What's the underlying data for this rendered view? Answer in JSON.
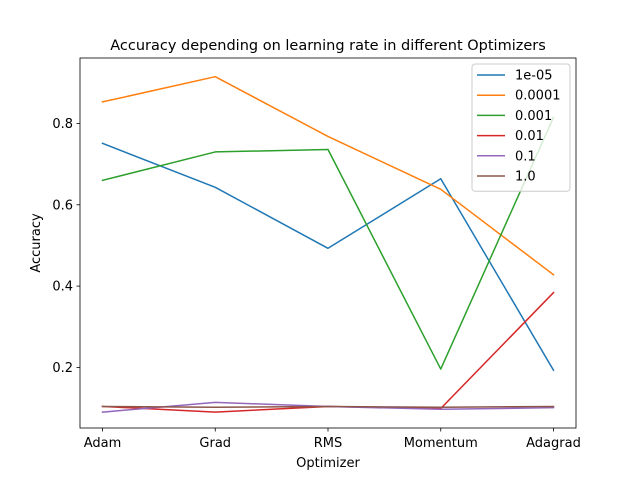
{
  "chart_data": {
    "type": "line",
    "title": "Accuracy depending on learning rate in different Optimizers",
    "xlabel": "Optimizer",
    "ylabel": "Accuracy",
    "categories": [
      "Adam",
      "Grad",
      "RMS",
      "Momentum",
      "Adagrad"
    ],
    "y_ticks": [
      0.2,
      0.4,
      0.6,
      0.8
    ],
    "y_tick_labels": [
      "0.2",
      "0.4",
      "0.6",
      "0.8"
    ],
    "ylim": [
      0.051,
      0.961
    ],
    "grid": false,
    "legend_position": "top-right",
    "series": [
      {
        "name": "1e-05",
        "color": "#1f77b4",
        "values": [
          0.751,
          0.643,
          0.493,
          0.664,
          0.193
        ]
      },
      {
        "name": "0.0001",
        "color": "#ff7f0e",
        "values": [
          0.853,
          0.915,
          0.768,
          0.638,
          0.428
        ]
      },
      {
        "name": "0.001",
        "color": "#2ca02c",
        "values": [
          0.66,
          0.73,
          0.736,
          0.196,
          0.815
        ]
      },
      {
        "name": "0.01",
        "color": "#d62728",
        "values": [
          0.104,
          0.09,
          0.104,
          0.099,
          0.384
        ]
      },
      {
        "name": "0.1",
        "color": "#9467bd",
        "values": [
          0.09,
          0.114,
          0.104,
          0.097,
          0.101
        ]
      },
      {
        "name": "1.0",
        "color": "#8c564b",
        "values": [
          0.104,
          0.102,
          0.104,
          0.102,
          0.104
        ]
      }
    ]
  }
}
